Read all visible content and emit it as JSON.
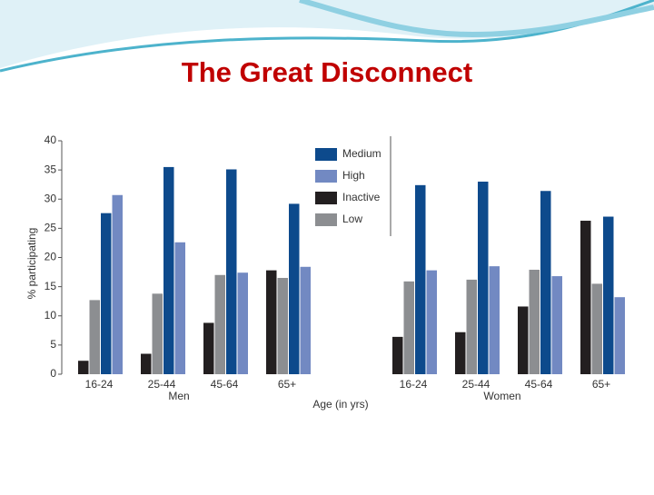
{
  "title": "The Great Disconnect",
  "chart_data": {
    "type": "bar",
    "categories": [
      "16-24",
      "25-44",
      "45-64",
      "65+",
      "16-24",
      "25-44",
      "45-64",
      "65+"
    ],
    "groups": [
      "Men",
      "Women"
    ],
    "series": [
      {
        "name": "Inactive",
        "color": "#231f20",
        "values": [
          2.3,
          3.5,
          8.8,
          17.8,
          6.4,
          7.2,
          11.6,
          26.3
        ]
      },
      {
        "name": "Low",
        "color": "#8c8e91",
        "values": [
          12.7,
          13.8,
          17,
          16.5,
          15.9,
          16.2,
          17.9,
          15.5
        ]
      },
      {
        "name": "Medium",
        "color": "#0d4a8c",
        "values": [
          27.6,
          35.5,
          35.1,
          29.2,
          32.4,
          33,
          31.4,
          27
        ]
      },
      {
        "name": "High",
        "color": "#7289c2",
        "values": [
          30.7,
          22.6,
          17.4,
          18.4,
          17.8,
          18.5,
          16.8,
          13.2
        ]
      }
    ],
    "legend_order": [
      2,
      3,
      0,
      1
    ],
    "y_label": "% participating",
    "x_label": "Age (in yrs)",
    "ylim": [
      0,
      40
    ],
    "yticks": [
      0,
      5,
      10,
      15,
      20,
      25,
      30,
      35,
      40
    ]
  }
}
